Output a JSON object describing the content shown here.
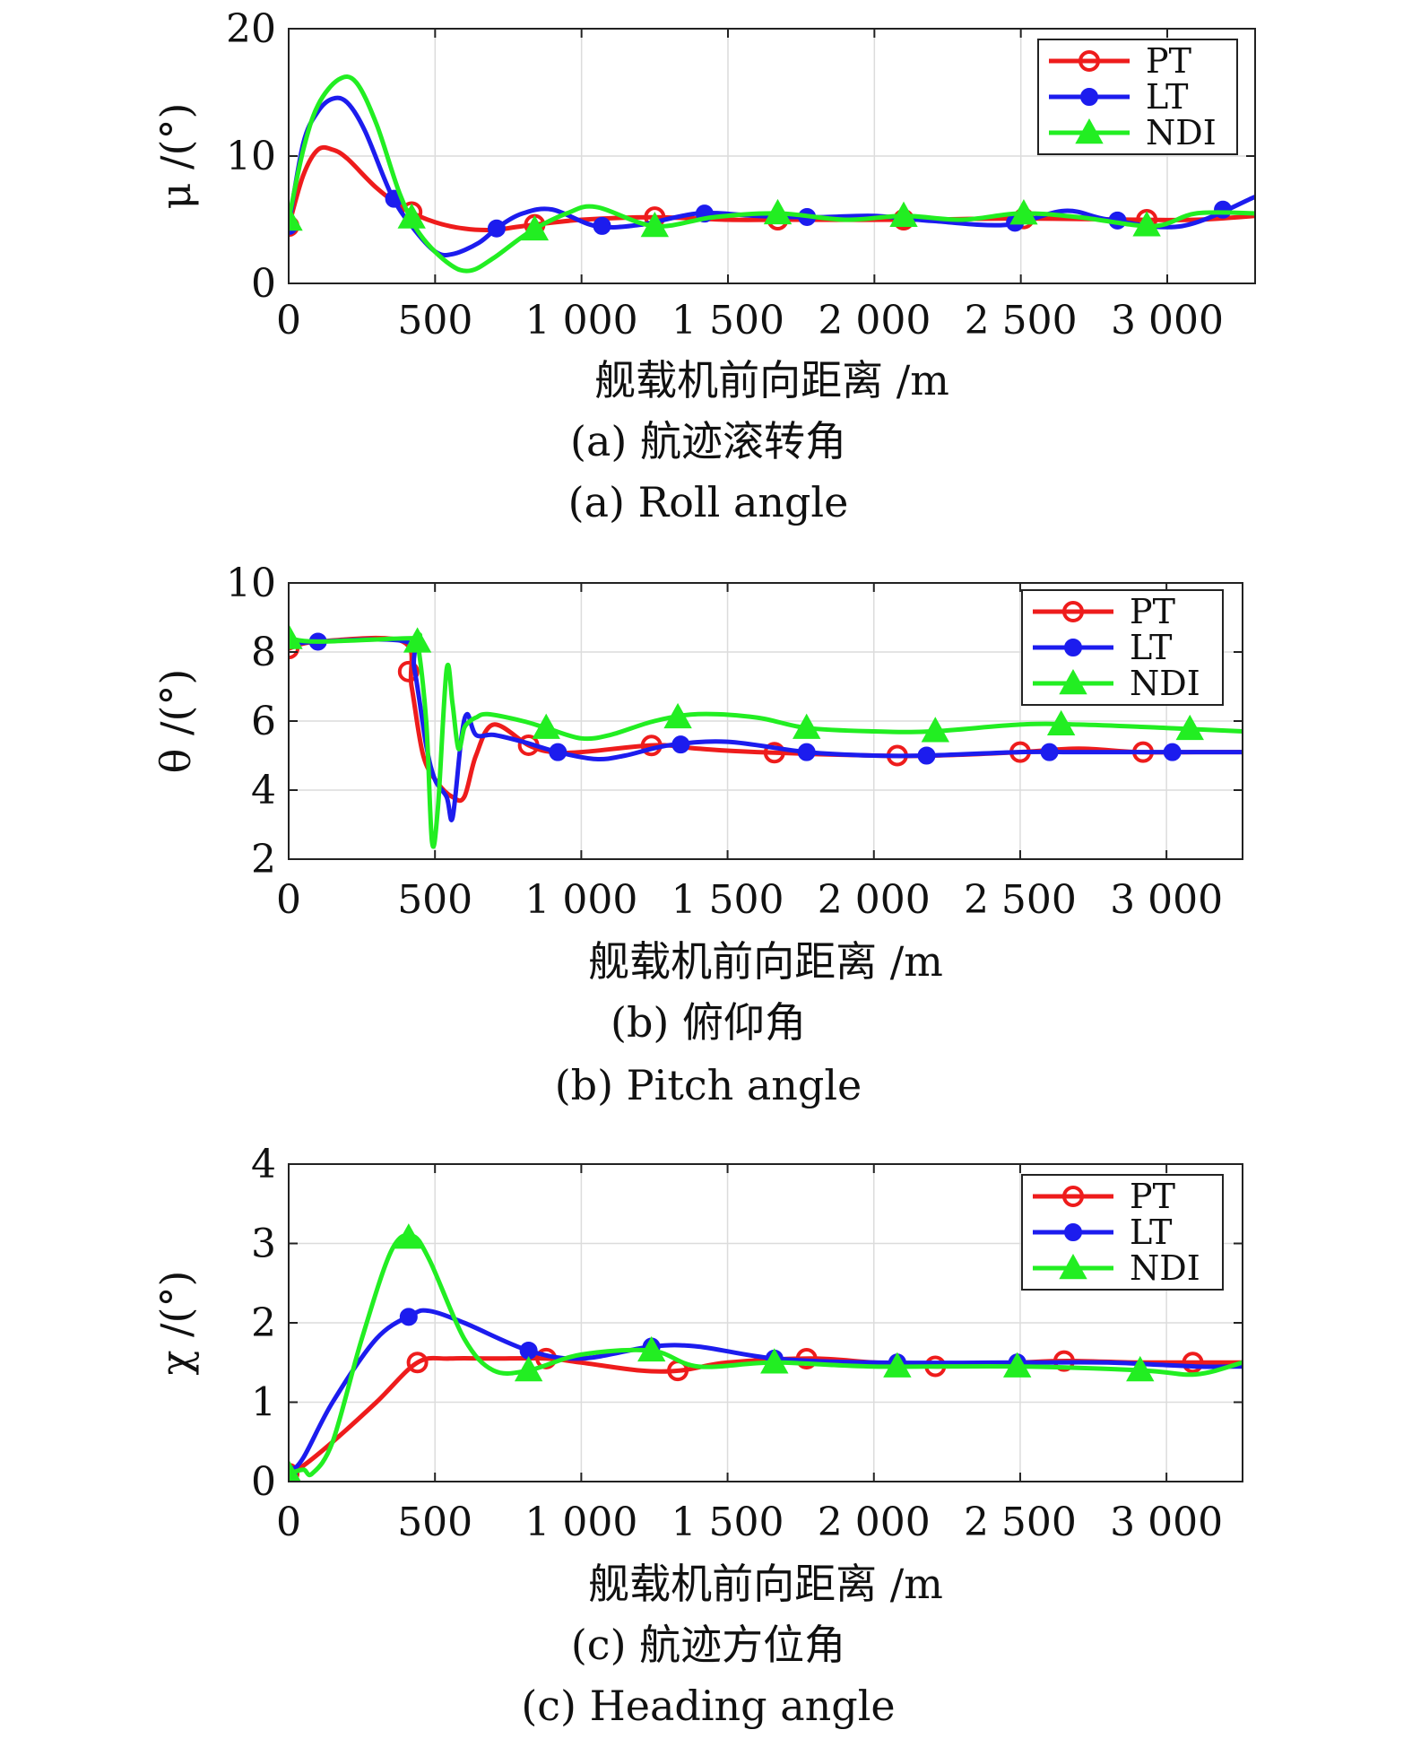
{
  "colors": {
    "PT": "#ee1c1c",
    "LT": "#1c1cee",
    "NDI": "#22ee22"
  },
  "panels": [
    {
      "id": "roll",
      "xlabel": "舰载机前向距离 /m",
      "ylabel": "μ /(°)",
      "caption_cn": "(a) 航迹滚转角",
      "caption_en": "(a) Roll angle",
      "legend": [
        "PT",
        "LT",
        "NDI"
      ],
      "xticks": [
        "0",
        "500",
        "1 000",
        "1 500",
        "2 000",
        "2 500",
        "3 000"
      ],
      "yticks": [
        "0",
        "10",
        "20"
      ]
    },
    {
      "id": "pitch",
      "xlabel": "舰载机前向距离 /m",
      "ylabel": "θ /(°)",
      "caption_cn": "(b) 俯仰角",
      "caption_en": "(b) Pitch angle",
      "legend": [
        "PT",
        "LT",
        "NDI"
      ],
      "xticks": [
        "0",
        "500",
        "1 000",
        "1 500",
        "2 000",
        "2 500",
        "3 000"
      ],
      "yticks": [
        "2",
        "4",
        "6",
        "8",
        "10"
      ]
    },
    {
      "id": "heading",
      "xlabel": "舰载机前向距离 /m",
      "ylabel": "χ /(°)",
      "caption_cn": "(c) 航迹方位角",
      "caption_en": "(c) Heading angle",
      "legend": [
        "PT",
        "LT",
        "NDI"
      ],
      "xticks": [
        "0",
        "500",
        "1 000",
        "1 500",
        "2 000",
        "2 500",
        "3 000"
      ],
      "yticks": [
        "0",
        "1",
        "2",
        "3",
        "4"
      ]
    }
  ],
  "chart_data": [
    {
      "type": "line",
      "xlim": [
        0,
        3300
      ],
      "ylim": [
        0,
        20
      ],
      "grid": true,
      "legend_position": "top-right",
      "series": [
        {
          "name": "PT",
          "marker": "circle-open",
          "x": [
            0,
            50,
            100,
            150,
            200,
            300,
            400,
            500,
            600,
            700,
            800,
            1000,
            1250,
            1500,
            1700,
            2100,
            2500,
            2900,
            3100,
            3300
          ],
          "y": [
            4.5,
            8.5,
            10.5,
            10.5,
            9.8,
            7.5,
            5.8,
            4.8,
            4.3,
            4.2,
            4.5,
            5.0,
            5.2,
            5.0,
            5.0,
            5.0,
            5.1,
            5.0,
            5.0,
            5.3
          ],
          "markers_x": [
            0,
            420,
            840,
            1250,
            1670,
            2100,
            2510,
            2930
          ]
        },
        {
          "name": "LT",
          "marker": "dot",
          "x": [
            0,
            50,
            100,
            150,
            200,
            260,
            350,
            420,
            500,
            560,
            650,
            720,
            800,
            900,
            1050,
            1200,
            1400,
            1600,
            1800,
            2000,
            2200,
            2450,
            2650,
            2800,
            3050,
            3300
          ],
          "y": [
            4.5,
            11.0,
            13.5,
            14.5,
            14.2,
            12.0,
            7.0,
            4.5,
            2.5,
            2.3,
            3.2,
            4.5,
            5.5,
            5.8,
            4.5,
            4.6,
            5.5,
            5.3,
            5.2,
            5.3,
            4.9,
            4.6,
            5.7,
            5.0,
            4.5,
            6.8
          ],
          "markers_x": [
            0,
            360,
            710,
            1070,
            1420,
            1770,
            2480,
            2830,
            3190
          ]
        },
        {
          "name": "NDI",
          "marker": "triangle",
          "x": [
            0,
            50,
            100,
            170,
            230,
            300,
            380,
            450,
            550,
            620,
            700,
            820,
            950,
            1050,
            1250,
            1450,
            1670,
            1900,
            2100,
            2300,
            2500,
            2700,
            2950,
            3100,
            3300
          ],
          "y": [
            5.0,
            10.5,
            14.0,
            16.0,
            15.8,
            12.5,
            7.0,
            3.8,
            1.5,
            1.0,
            2.0,
            4.0,
            5.5,
            6.0,
            4.5,
            5.2,
            5.5,
            5.0,
            5.3,
            5.0,
            5.5,
            5.2,
            4.5,
            5.5,
            5.5
          ],
          "markers_x": [
            0,
            420,
            840,
            1250,
            1670,
            2100,
            2510,
            2930
          ]
        }
      ]
    },
    {
      "type": "line",
      "xlim": [
        0,
        3260
      ],
      "ylim": [
        2,
        10
      ],
      "grid": true,
      "legend_position": "top-right",
      "series": [
        {
          "name": "PT",
          "marker": "circle-open",
          "x": [
            0,
            100,
            390,
            420,
            460,
            510,
            560,
            600,
            640,
            700,
            820,
            900,
            1000,
            1250,
            1400,
            1600,
            2000,
            2200,
            2500,
            2700,
            2900,
            3100,
            3260
          ],
          "y": [
            8.1,
            8.3,
            8.3,
            7.0,
            5.0,
            4.2,
            3.8,
            3.8,
            5.0,
            5.9,
            5.3,
            5.1,
            5.1,
            5.3,
            5.2,
            5.1,
            5.0,
            5.0,
            5.1,
            5.2,
            5.1,
            5.1,
            5.1
          ],
          "markers_x": [
            0,
            410,
            820,
            1240,
            1660,
            2080,
            2500,
            2920
          ]
        },
        {
          "name": "LT",
          "marker": "dot",
          "x": [
            0,
            100,
            400,
            430,
            470,
            500,
            540,
            560,
            590,
            610,
            640,
            700,
            800,
            920,
            1050,
            1150,
            1300,
            1500,
            1770,
            2000,
            2180,
            2500,
            2700,
            3000,
            3260
          ],
          "y": [
            8.2,
            8.3,
            8.3,
            7.5,
            5.3,
            4.3,
            3.8,
            3.2,
            5.5,
            6.2,
            5.6,
            5.6,
            5.4,
            5.1,
            4.9,
            5.0,
            5.3,
            5.4,
            5.1,
            5.0,
            5.0,
            5.1,
            5.1,
            5.1,
            5.1
          ],
          "markers_x": [
            100,
            920,
            1340,
            1770,
            2180,
            2600,
            3020
          ]
        },
        {
          "name": "NDI",
          "marker": "triangle",
          "x": [
            0,
            100,
            420,
            440,
            470,
            490,
            510,
            540,
            560,
            580,
            600,
            620,
            640,
            680,
            800,
            880,
            1000,
            1100,
            1250,
            1400,
            1600,
            1770,
            2000,
            2200,
            2500,
            2700,
            3000,
            3260
          ],
          "y": [
            8.4,
            8.3,
            8.4,
            8.3,
            6.0,
            2.5,
            3.5,
            7.5,
            6.5,
            5.2,
            5.8,
            6.0,
            6.1,
            6.2,
            6.0,
            5.8,
            5.5,
            5.6,
            6.0,
            6.2,
            6.1,
            5.8,
            5.7,
            5.7,
            5.9,
            5.9,
            5.8,
            5.7
          ],
          "markers_x": [
            0,
            440,
            880,
            1330,
            1770,
            2210,
            2640,
            3080
          ]
        }
      ]
    },
    {
      "type": "line",
      "xlim": [
        0,
        3260
      ],
      "ylim": [
        0,
        4
      ],
      "grid": true,
      "legend_position": "top-right",
      "series": [
        {
          "name": "PT",
          "marker": "circle-open",
          "x": [
            0,
            50,
            150,
            300,
            440,
            550,
            700,
            880,
            1000,
            1200,
            1340,
            1500,
            1780,
            2000,
            2220,
            2500,
            2660,
            2900,
            3100,
            3260
          ],
          "y": [
            0.1,
            0.2,
            0.5,
            1.0,
            1.5,
            1.55,
            1.55,
            1.55,
            1.5,
            1.4,
            1.4,
            1.5,
            1.55,
            1.5,
            1.45,
            1.5,
            1.52,
            1.5,
            1.5,
            1.5
          ],
          "markers_x": [
            0,
            440,
            880,
            1330,
            1770,
            2210,
            2650,
            3090
          ]
        },
        {
          "name": "LT",
          "marker": "dot",
          "x": [
            0,
            50,
            150,
            300,
            420,
            480,
            600,
            820,
            1000,
            1240,
            1400,
            1660,
            2000,
            2500,
            2800,
            3100,
            3260
          ],
          "y": [
            0.1,
            0.3,
            1.0,
            1.8,
            2.1,
            2.15,
            2.0,
            1.65,
            1.55,
            1.7,
            1.7,
            1.55,
            1.5,
            1.5,
            1.5,
            1.45,
            1.45
          ],
          "markers_x": [
            0,
            410,
            820,
            1240,
            1660,
            2080,
            2490
          ]
        },
        {
          "name": "NDI",
          "marker": "triangle",
          "x": [
            0,
            50,
            80,
            150,
            250,
            350,
            420,
            480,
            600,
            700,
            820,
            1000,
            1240,
            1400,
            1660,
            2000,
            2500,
            2920,
            3100,
            3260
          ],
          "y": [
            0.1,
            0.15,
            0.1,
            0.5,
            1.8,
            2.9,
            3.1,
            2.8,
            1.8,
            1.4,
            1.4,
            1.6,
            1.65,
            1.45,
            1.5,
            1.45,
            1.45,
            1.4,
            1.35,
            1.5
          ],
          "markers_x": [
            0,
            410,
            820,
            1240,
            1660,
            2080,
            2490,
            2910
          ]
        }
      ]
    }
  ]
}
